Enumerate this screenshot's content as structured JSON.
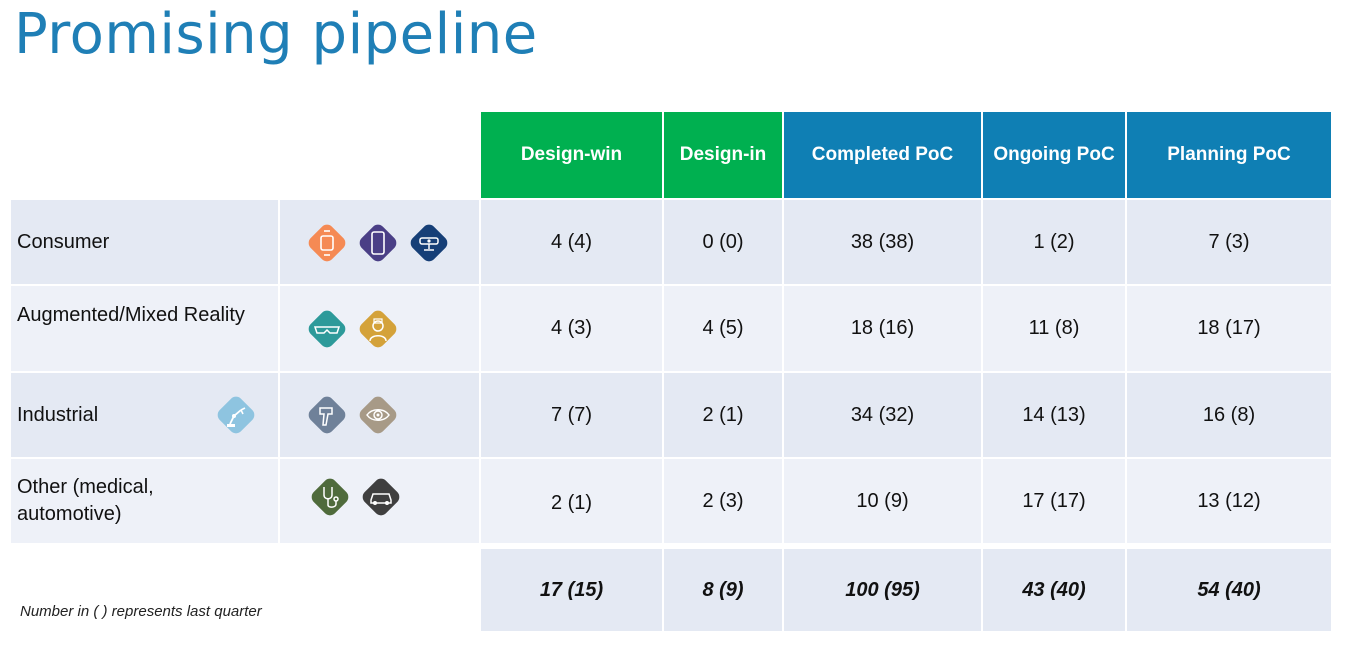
{
  "title": "Promising pipeline",
  "headers": [
    "Design-win",
    "Design-in",
    "Completed PoC",
    "Ongoing PoC",
    "Planning PoC"
  ],
  "rows": [
    {
      "label": "Consumer",
      "icons": [
        "smartwatch-icon",
        "smartphone-icon",
        "camera-device-icon"
      ],
      "values": [
        "4 (4)",
        "0 (0)",
        "38 (38)",
        "1 (2)",
        "7 (3)"
      ]
    },
    {
      "label": "Augmented/Mixed Reality",
      "icons": [
        "ar-glasses-icon",
        "headset-person-icon"
      ],
      "values": [
        "4 (3)",
        "4 (5)",
        "18 (16)",
        "11 (8)",
        "18 (17)"
      ]
    },
    {
      "label": "Industrial",
      "icons": [
        "robot-arm-icon",
        "barcode-scanner-icon",
        "eye-scan-icon"
      ],
      "values": [
        "7 (7)",
        "2 (1)",
        "34 (32)",
        "14 (13)",
        "16 (8)"
      ]
    },
    {
      "label": "Other (medical, automotive)",
      "icons": [
        "stethoscope-icon",
        "car-icon"
      ],
      "values": [
        "2 (1)",
        "2 (3)",
        "10 (9)",
        "17 (17)",
        "13 (12)"
      ]
    }
  ],
  "totals": [
    "17 (15)",
    "8 (9)",
    "100 (95)",
    "43 (40)",
    "54 (40)"
  ],
  "note": "Number in ( ) represents last quarter",
  "colors": {
    "title": "#1f7fb6",
    "green_header": "#00b050",
    "blue_header": "#0f7fb4",
    "row_background": "#e4e9f3",
    "icon_orange": "#f58a54",
    "icon_purple": "#4a3f86",
    "icon_navy": "#163f77",
    "icon_teal": "#2d9a9a",
    "icon_gold": "#d4a23a",
    "icon_lightblue": "#8ec4e0",
    "icon_slate": "#6f8199",
    "icon_taupe": "#a79a87",
    "icon_green": "#4f6b3c",
    "icon_charcoal": "#3f3f3f"
  }
}
